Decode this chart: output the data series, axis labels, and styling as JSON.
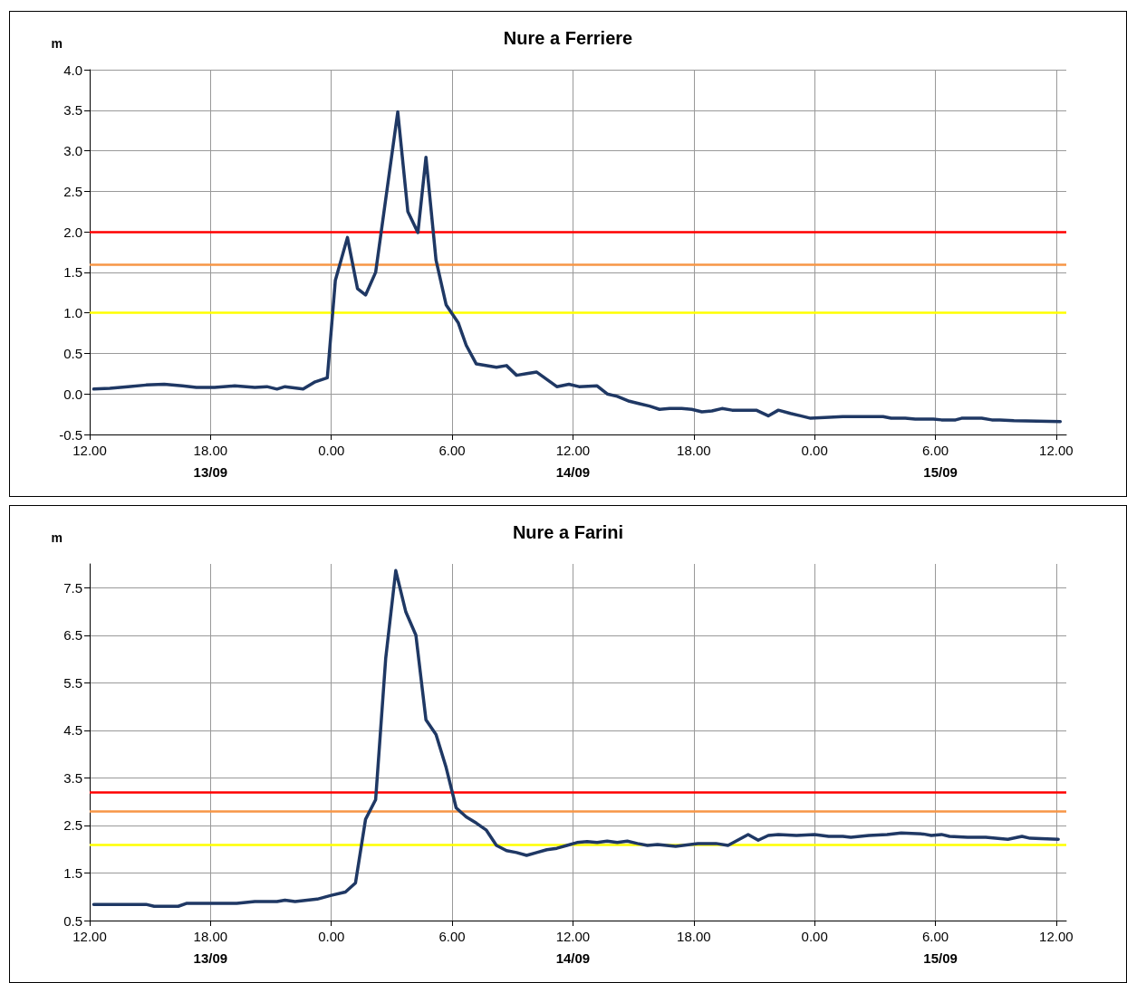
{
  "chart_data": [
    {
      "type": "line",
      "title": "Nure a Ferriere",
      "ylabel": "m",
      "grid": true,
      "marker": "none",
      "line_style": "solid",
      "xlim": [
        "--09-13T12:00",
        "--09-15T12:30"
      ],
      "ylim": [
        -0.5,
        4.0
      ],
      "xticks": [
        {
          "value": "--09-13T12:00",
          "label": "12.00"
        },
        {
          "value": "--09-13T18:00",
          "label": "18.00"
        },
        {
          "value": "--09-14T00:00",
          "label": "0.00"
        },
        {
          "value": "--09-14T06:00",
          "label": "6.00"
        },
        {
          "value": "--09-14T12:00",
          "label": "12.00"
        },
        {
          "value": "--09-14T18:00",
          "label": "18.00"
        },
        {
          "value": "--09-15T00:00",
          "label": "0.00"
        },
        {
          "value": "--09-15T06:00",
          "label": "6.00"
        },
        {
          "value": "--09-15T12:00",
          "label": "12.00"
        }
      ],
      "annotations": [
        "13/09",
        "14/09",
        "15/09"
      ],
      "yticks": [
        {
          "value": -0.5,
          "label": "-0.5"
        },
        {
          "value": 0,
          "label": "0.0"
        },
        {
          "value": 0.5,
          "label": "0.5"
        },
        {
          "value": 1,
          "label": "1.0"
        },
        {
          "value": 1.5,
          "label": "1.5"
        },
        {
          "value": 2,
          "label": "2.0"
        },
        {
          "value": 2.5,
          "label": "2.5"
        },
        {
          "value": 3,
          "label": "3.0"
        },
        {
          "value": 3.5,
          "label": "3.5"
        },
        {
          "value": 4,
          "label": "4.0"
        }
      ],
      "ref_lines": [
        {
          "axis": "y",
          "value": 2.0,
          "color": "#ff0000"
        },
        {
          "axis": "y",
          "value": 1.6,
          "color": "#f79646"
        },
        {
          "axis": "y",
          "value": 1.0,
          "color": "#ffff00"
        }
      ],
      "series": [
        {
          "color": "#1f3864",
          "x": [
            "--09-13T12:12",
            "--09-13T13:00",
            "--09-13T13:54",
            "--09-13T14:48",
            "--09-13T15:42",
            "--09-13T16:36",
            "--09-13T17:18",
            "--09-13T18:12",
            "--09-13T19:12",
            "--09-13T20:12",
            "--09-13T20:48",
            "--09-13T21:18",
            "--09-13T21:42",
            "--09-13T22:36",
            "--09-13T23:12",
            "--09-13T23:48",
            "--09-14T00:12",
            "--09-14T00:48",
            "--09-14T01:18",
            "--09-14T01:42",
            "--09-14T02:12",
            "--09-14T03:18",
            "--09-14T03:48",
            "--09-14T04:18",
            "--09-14T04:42",
            "--09-14T05:12",
            "--09-14T05:42",
            "--09-14T06:18",
            "--09-14T06:42",
            "--09-14T07:12",
            "--09-14T08:12",
            "--09-14T08:42",
            "--09-14T09:12",
            "--09-14T09:42",
            "--09-14T10:12",
            "--09-14T11:12",
            "--09-14T11:48",
            "--09-14T12:18",
            "--09-14T13:12",
            "--09-14T13:42",
            "--09-14T14:12",
            "--09-14T14:48",
            "--09-14T15:18",
            "--09-14T15:48",
            "--09-14T16:18",
            "--09-14T16:48",
            "--09-14T17:24",
            "--09-14T17:54",
            "--09-14T18:24",
            "--09-14T18:54",
            "--09-14T19:24",
            "--09-14T19:54",
            "--09-14T21:06",
            "--09-14T21:42",
            "--09-14T22:12",
            "--09-14T22:48",
            "--09-14T23:18",
            "--09-14T23:48",
            "--09-15T00:30",
            "--09-15T01:24",
            "--09-15T03:24",
            "--09-15T03:48",
            "--09-15T04:30",
            "--09-15T05:00",
            "--09-15T05:54",
            "--09-15T06:18",
            "--09-15T07:00",
            "--09-15T07:18",
            "--09-15T08:18",
            "--09-15T08:48",
            "--09-15T09:12",
            "--09-15T09:54",
            "--09-15T12:12"
          ],
          "values": [
            0.06,
            0.07,
            0.09,
            0.11,
            0.12,
            0.1,
            0.08,
            0.08,
            0.1,
            0.08,
            0.09,
            0.06,
            0.09,
            0.06,
            0.15,
            0.2,
            1.4,
            1.93,
            1.3,
            1.22,
            1.5,
            3.48,
            2.25,
            1.99,
            2.92,
            1.65,
            1.1,
            0.88,
            0.6,
            0.37,
            0.33,
            0.35,
            0.23,
            0.25,
            0.27,
            0.09,
            0.12,
            0.09,
            0.1,
            0.0,
            -0.03,
            -0.09,
            -0.12,
            -0.15,
            -0.19,
            -0.18,
            -0.18,
            -0.19,
            -0.22,
            -0.21,
            -0.18,
            -0.2,
            -0.2,
            -0.27,
            -0.2,
            -0.24,
            -0.27,
            -0.3,
            -0.29,
            -0.28,
            -0.28,
            -0.3,
            -0.3,
            -0.31,
            -0.31,
            -0.32,
            -0.32,
            -0.3,
            -0.3,
            -0.32,
            -0.32,
            -0.33,
            -0.34
          ]
        }
      ]
    },
    {
      "type": "line",
      "title": "Nure a Farini",
      "ylabel": "m",
      "grid": true,
      "marker": "none",
      "line_style": "solid",
      "xlim": [
        "--09-13T12:00",
        "--09-15T12:30"
      ],
      "ylim": [
        0.5,
        8.0
      ],
      "xticks": [
        {
          "value": "--09-13T12:00",
          "label": "12.00"
        },
        {
          "value": "--09-13T18:00",
          "label": "18.00"
        },
        {
          "value": "--09-14T00:00",
          "label": "0.00"
        },
        {
          "value": "--09-14T06:00",
          "label": "6.00"
        },
        {
          "value": "--09-14T12:00",
          "label": "12.00"
        },
        {
          "value": "--09-14T18:00",
          "label": "18.00"
        },
        {
          "value": "--09-15T00:00",
          "label": "0.00"
        },
        {
          "value": "--09-15T06:00",
          "label": "6.00"
        },
        {
          "value": "--09-15T12:00",
          "label": "12.00"
        }
      ],
      "annotations": [
        "13/09",
        "14/09",
        "15/09"
      ],
      "yticks": [
        0.5,
        1.5,
        2.5,
        3.5,
        4.5,
        5.5,
        6.5,
        7.5
      ],
      "ref_lines": [
        {
          "axis": "y",
          "value": 3.2,
          "color": "#ff0000"
        },
        {
          "axis": "y",
          "value": 2.8,
          "color": "#f79646"
        },
        {
          "axis": "y",
          "value": 2.1,
          "color": "#ffff00"
        }
      ],
      "series": [
        {
          "color": "#1f3864",
          "x": [
            "--09-13T12:12",
            "--09-13T14:48",
            "--09-13T15:12",
            "--09-13T16:24",
            "--09-13T16:48",
            "--09-13T19:18",
            "--09-13T20:12",
            "--09-13T21:18",
            "--09-13T21:42",
            "--09-13T22:12",
            "--09-13T23:18",
            "--09-14T00:00",
            "--09-14T00:42",
            "--09-14T01:12",
            "--09-14T01:42",
            "--09-14T02:12",
            "--09-14T02:42",
            "--09-14T03:12",
            "--09-14T03:42",
            "--09-14T04:12",
            "--09-14T04:42",
            "--09-14T05:12",
            "--09-14T05:42",
            "--09-14T06:12",
            "--09-14T06:42",
            "--09-14T07:12",
            "--09-14T07:42",
            "--09-14T08:12",
            "--09-14T08:42",
            "--09-14T09:12",
            "--09-14T09:42",
            "--09-14T10:12",
            "--09-14T10:42",
            "--09-14T11:12",
            "--09-14T11:42",
            "--09-14T12:12",
            "--09-14T12:42",
            "--09-14T13:12",
            "--09-14T13:42",
            "--09-14T14:12",
            "--09-14T14:42",
            "--09-14T15:12",
            "--09-14T15:42",
            "--09-14T16:12",
            "--09-14T17:06",
            "--09-14T18:12",
            "--09-14T19:06",
            "--09-14T19:42",
            "--09-14T20:42",
            "--09-14T21:12",
            "--09-14T21:42",
            "--09-14T22:12",
            "--09-14T23:06",
            "--09-15T00:00",
            "--09-15T00:42",
            "--09-15T01:24",
            "--09-15T01:48",
            "--09-15T02:42",
            "--09-15T03:36",
            "--09-15T04:18",
            "--09-15T05:24",
            "--09-15T05:48",
            "--09-15T06:18",
            "--09-15T06:42",
            "--09-15T07:36",
            "--09-15T08:30",
            "--09-15T09:36",
            "--09-15T10:18",
            "--09-15T10:42",
            "--09-15T12:06"
          ],
          "values": [
            0.84,
            0.84,
            0.8,
            0.8,
            0.86,
            0.86,
            0.9,
            0.9,
            0.93,
            0.9,
            0.95,
            1.03,
            1.1,
            1.29,
            2.63,
            3.04,
            6.01,
            7.86,
            6.99,
            6.5,
            4.72,
            4.41,
            3.72,
            2.87,
            2.68,
            2.55,
            2.4,
            2.08,
            1.97,
            1.93,
            1.87,
            1.93,
            1.99,
            2.02,
            2.08,
            2.14,
            2.16,
            2.14,
            2.17,
            2.14,
            2.17,
            2.12,
            2.08,
            2.1,
            2.06,
            2.12,
            2.12,
            2.08,
            2.31,
            2.19,
            2.29,
            2.31,
            2.29,
            2.31,
            2.27,
            2.27,
            2.25,
            2.29,
            2.31,
            2.34,
            2.32,
            2.29,
            2.31,
            2.27,
            2.25,
            2.25,
            2.21,
            2.27,
            2.23,
            2.21
          ]
        }
      ]
    }
  ]
}
